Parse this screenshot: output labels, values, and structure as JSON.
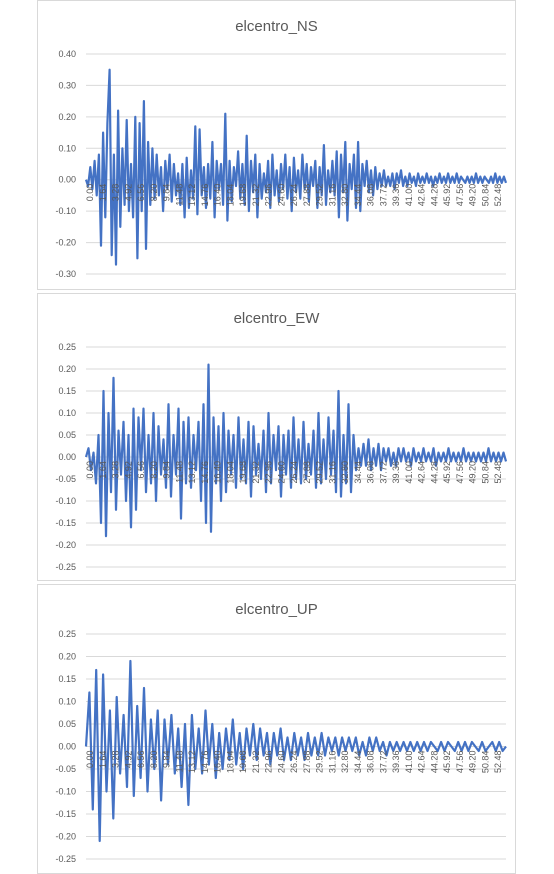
{
  "colors": {
    "series": "#4472c4",
    "grid": "#d9d9d9",
    "text": "#595959",
    "border": "#d9d9d9"
  },
  "chart_data": [
    {
      "type": "line",
      "title": "elcentro_NS",
      "xlabel": "",
      "ylabel": "",
      "ylim": [
        -0.3,
        0.4
      ],
      "yticks": [
        "0.40",
        "0.30",
        "0.20",
        "0.10",
        "0.00",
        "-0.10",
        "-0.20",
        "-0.30"
      ],
      "xticks": [
        "0.00",
        "1.64",
        "3.28",
        "4.92",
        "6.56",
        "8.20",
        "9.84",
        "11.48",
        "13.12",
        "14.76",
        "16.40",
        "18.04",
        "19.68",
        "21.32",
        "22.96",
        "24.60",
        "26.24",
        "27.88",
        "29.52",
        "31.16",
        "32.80",
        "34.44",
        "36.08",
        "37.72",
        "39.36",
        "41.00",
        "42.64",
        "44.28",
        "45.92",
        "47.56",
        "49.20",
        "50.84",
        "52.48"
      ],
      "grid": true,
      "legend": "none",
      "series": [
        {
          "values": [
            0.0,
            -0.02,
            0.04,
            -0.03,
            0.06,
            -0.05,
            0.08,
            -0.21,
            0.15,
            -0.12,
            0.18,
            0.35,
            -0.24,
            0.08,
            -0.27,
            0.22,
            -0.15,
            0.1,
            -0.08,
            0.19,
            -0.1,
            0.05,
            -0.12,
            0.2,
            -0.25,
            0.18,
            -0.1,
            0.25,
            -0.22,
            0.12,
            -0.08,
            0.1,
            -0.06,
            0.08,
            -0.05,
            0.04,
            -0.1,
            0.06,
            -0.03,
            0.08,
            -0.07,
            0.05,
            -0.05,
            0.02,
            -0.08,
            0.05,
            -0.12,
            0.07,
            -0.09,
            0.03,
            -0.06,
            0.17,
            -0.11,
            0.16,
            -0.05,
            0.04,
            -0.09,
            0.05,
            -0.06,
            0.12,
            -0.12,
            0.06,
            -0.03,
            0.05,
            -0.08,
            0.21,
            -0.13,
            0.06,
            -0.07,
            0.04,
            -0.02,
            0.09,
            -0.06,
            0.05,
            -0.08,
            0.14,
            -0.1,
            0.06,
            -0.04,
            0.08,
            -0.12,
            0.05,
            -0.06,
            0.02,
            -0.04,
            0.06,
            -0.09,
            0.08,
            -0.05,
            0.03,
            -0.07,
            0.05,
            -0.03,
            0.08,
            -0.06,
            0.04,
            -0.1,
            0.07,
            -0.04,
            0.03,
            -0.06,
            0.08,
            -0.03,
            0.05,
            -0.07,
            0.04,
            -0.02,
            0.06,
            -0.09,
            0.04,
            -0.05,
            0.11,
            -0.08,
            0.03,
            -0.04,
            0.06,
            -0.05,
            0.09,
            -0.12,
            0.08,
            -0.04,
            0.12,
            -0.13,
            0.05,
            -0.03,
            0.08,
            -0.09,
            0.12,
            -0.1,
            0.05,
            -0.02,
            0.06,
            -0.04,
            0.03,
            -0.05,
            0.04,
            -0.03,
            0.02,
            -0.02,
            0.03,
            -0.02,
            0.01,
            -0.02,
            0.02,
            -0.03,
            0.02,
            -0.01,
            0.03,
            -0.02,
            0.01,
            -0.02,
            0.02,
            -0.01,
            0.01,
            -0.02,
            0.02,
            -0.01,
            0.01,
            -0.01,
            0.02,
            -0.01,
            0.01,
            -0.02,
            0.01,
            -0.01,
            0.02,
            -0.01,
            0.01,
            -0.01,
            0.02,
            -0.01,
            0.01,
            -0.01,
            0.02,
            -0.01,
            0.01,
            0.0,
            -0.01,
            0.01,
            -0.01,
            0.01,
            -0.01,
            0.02,
            -0.01,
            0.01,
            -0.01,
            0.01,
            0.0,
            -0.01,
            0.01,
            -0.01,
            0.02,
            -0.01,
            0.01,
            -0.01,
            0.01,
            -0.01
          ]
        }
      ]
    },
    {
      "type": "line",
      "title": "elcentro_EW",
      "xlabel": "",
      "ylabel": "",
      "ylim": [
        -0.25,
        0.25
      ],
      "yticks": [
        "0.25",
        "0.20",
        "0.15",
        "0.10",
        "0.05",
        "0.00",
        "-0.05",
        "-0.10",
        "-0.15",
        "-0.20",
        "-0.25"
      ],
      "xticks": [
        "0.00",
        "1.64",
        "3.28",
        "4.92",
        "6.56",
        "8.20",
        "9.84",
        "11.48",
        "13.12",
        "14.76",
        "16.40",
        "18.04",
        "19.68",
        "21.32",
        "22.96",
        "24.60",
        "26.24",
        "27.88",
        "29.52",
        "31.16",
        "32.80",
        "34.44",
        "36.08",
        "37.72",
        "39.36",
        "41.00",
        "42.64",
        "44.28",
        "45.92",
        "47.56",
        "49.20",
        "50.84",
        "52.48"
      ],
      "grid": true,
      "legend": "none",
      "series": [
        {
          "values": [
            0.0,
            0.02,
            -0.03,
            0.01,
            -0.06,
            0.05,
            -0.15,
            0.15,
            -0.18,
            0.1,
            -0.08,
            0.18,
            -0.12,
            0.06,
            -0.04,
            0.08,
            -0.1,
            0.05,
            -0.16,
            0.11,
            -0.12,
            0.09,
            -0.03,
            0.11,
            -0.08,
            0.05,
            -0.06,
            0.1,
            -0.1,
            0.07,
            -0.04,
            0.04,
            -0.07,
            0.12,
            -0.09,
            0.05,
            -0.04,
            0.11,
            -0.14,
            0.08,
            -0.06,
            0.09,
            -0.07,
            0.05,
            -0.03,
            0.08,
            -0.1,
            0.12,
            -0.15,
            0.21,
            -0.17,
            0.09,
            -0.06,
            0.07,
            -0.1,
            0.1,
            -0.08,
            0.06,
            -0.04,
            0.05,
            -0.07,
            0.09,
            -0.05,
            0.04,
            -0.06,
            0.08,
            -0.09,
            0.07,
            -0.04,
            0.03,
            -0.05,
            0.06,
            -0.08,
            0.1,
            -0.06,
            0.05,
            -0.03,
            0.07,
            -0.09,
            0.05,
            -0.04,
            0.06,
            -0.07,
            0.09,
            -0.05,
            0.04,
            -0.06,
            0.08,
            -0.05,
            0.03,
            -0.04,
            0.06,
            -0.07,
            0.1,
            -0.06,
            0.04,
            -0.05,
            0.09,
            -0.04,
            0.06,
            -0.08,
            0.15,
            -0.09,
            0.05,
            -0.06,
            0.12,
            -0.08,
            0.05,
            -0.03,
            0.02,
            -0.02,
            0.03,
            -0.02,
            0.04,
            -0.03,
            0.02,
            -0.02,
            0.03,
            -0.03,
            0.02,
            -0.01,
            0.02,
            -0.02,
            0.01,
            -0.02,
            0.02,
            -0.01,
            0.02,
            -0.01,
            0.01,
            -0.02,
            0.02,
            -0.01,
            0.01,
            -0.01,
            0.02,
            -0.01,
            0.01,
            -0.01,
            0.02,
            -0.02,
            0.01,
            -0.01,
            0.01,
            -0.01,
            0.02,
            -0.01,
            0.01,
            -0.01,
            0.01,
            -0.01,
            0.02,
            -0.01,
            0.01,
            -0.01,
            0.01,
            -0.01,
            0.01,
            -0.01,
            0.01,
            -0.01,
            0.02,
            -0.01,
            0.01,
            -0.01,
            0.01,
            -0.01,
            0.01,
            -0.01
          ]
        }
      ]
    },
    {
      "type": "line",
      "title": "elcentro_UP",
      "xlabel": "",
      "ylabel": "",
      "ylim": [
        -0.25,
        0.25
      ],
      "yticks": [
        "0.25",
        "0.20",
        "0.15",
        "0.10",
        "0.05",
        "0.00",
        "-0.05",
        "-0.10",
        "-0.15",
        "-0.20",
        "-0.25"
      ],
      "xticks": [
        "0.00",
        "1.64",
        "3.28",
        "4.92",
        "6.56",
        "8.20",
        "9.84",
        "11.48",
        "13.12",
        "14.76",
        "16.40",
        "18.04",
        "19.68",
        "21.32",
        "22.96",
        "24.60",
        "26.24",
        "27.88",
        "29.52",
        "31.16",
        "32.80",
        "34.44",
        "36.08",
        "37.72",
        "39.36",
        "41.00",
        "42.64",
        "44.28",
        "45.92",
        "47.56",
        "49.20",
        "50.84",
        "52.48"
      ],
      "grid": true,
      "legend": "none",
      "series": [
        {
          "values": [
            0.0,
            0.12,
            -0.14,
            0.17,
            -0.21,
            0.16,
            -0.1,
            0.08,
            -0.16,
            0.11,
            -0.06,
            0.07,
            -0.09,
            0.19,
            -0.11,
            0.09,
            -0.07,
            0.13,
            -0.1,
            0.06,
            -0.05,
            0.08,
            -0.12,
            0.06,
            -0.04,
            0.07,
            -0.06,
            0.04,
            -0.09,
            0.05,
            -0.13,
            0.07,
            -0.05,
            0.04,
            -0.06,
            0.08,
            -0.04,
            0.05,
            -0.07,
            0.03,
            -0.05,
            0.04,
            -0.03,
            0.06,
            -0.04,
            0.03,
            -0.05,
            0.04,
            -0.02,
            0.05,
            -0.03,
            0.04,
            -0.02,
            0.03,
            -0.04,
            0.03,
            -0.02,
            0.04,
            -0.03,
            0.02,
            -0.03,
            0.03,
            -0.02,
            0.02,
            -0.03,
            0.03,
            -0.02,
            0.02,
            -0.02,
            0.03,
            -0.02,
            0.02,
            -0.01,
            0.02,
            -0.02,
            0.02,
            -0.01,
            0.02,
            -0.01,
            0.02,
            -0.02,
            0.01,
            -0.02,
            0.02,
            -0.01,
            0.02,
            -0.01,
            0.01,
            -0.02,
            0.01,
            -0.01,
            0.01,
            -0.01,
            0.01,
            -0.01,
            0.01,
            -0.01,
            0.01,
            -0.01,
            0.01,
            -0.01,
            0.01,
            0.0,
            -0.01,
            0.01,
            -0.01,
            0.01,
            0.0,
            -0.01,
            0.01,
            -0.01,
            0.01,
            -0.01,
            0.01,
            0.0,
            -0.01,
            0.01,
            -0.01,
            0.0,
            0.01,
            -0.01,
            0.01,
            -0.01,
            0.0
          ]
        }
      ]
    }
  ]
}
